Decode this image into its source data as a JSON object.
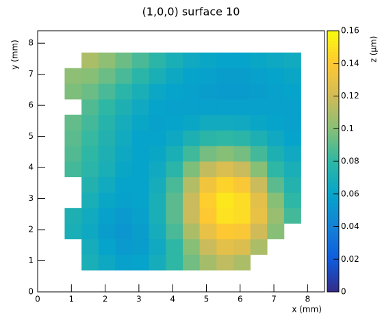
{
  "chart_data": {
    "type": "heatmap",
    "title": "(1,0,0) surface 10",
    "x_label": "x (mm)",
    "y_label": "y (mm)",
    "z_label": "z (µm)",
    "x": [
      1.05,
      1.55,
      2.05,
      2.55,
      3.05,
      3.55,
      4.05,
      4.55,
      5.05,
      5.55,
      6.05,
      6.55,
      7.05,
      7.55
    ],
    "y": [
      0.95,
      1.45,
      1.95,
      2.45,
      2.95,
      3.45,
      3.95,
      4.45,
      4.95,
      5.45,
      5.95,
      6.45,
      6.95,
      7.45
    ],
    "z": [
      [
        null,
        0.07,
        0.064,
        0.058,
        0.06,
        0.068,
        0.08,
        0.095,
        0.108,
        0.115,
        0.11,
        null,
        null,
        null
      ],
      [
        null,
        0.068,
        0.06,
        0.054,
        0.056,
        0.065,
        0.08,
        0.1,
        0.118,
        0.128,
        0.125,
        0.11,
        null,
        null
      ],
      [
        0.07,
        0.064,
        0.056,
        0.052,
        0.056,
        0.068,
        0.086,
        0.11,
        0.13,
        0.14,
        0.138,
        0.12,
        0.1,
        null
      ],
      [
        0.072,
        0.066,
        0.058,
        0.054,
        0.058,
        0.07,
        0.09,
        0.118,
        0.14,
        0.15,
        0.148,
        0.13,
        0.105,
        0.085
      ],
      [
        null,
        0.07,
        0.062,
        0.058,
        0.06,
        0.07,
        0.09,
        0.118,
        0.142,
        0.152,
        0.148,
        0.128,
        0.1,
        0.08
      ],
      [
        null,
        0.074,
        0.066,
        0.06,
        0.06,
        0.068,
        0.086,
        0.112,
        0.134,
        0.144,
        0.138,
        0.118,
        0.09,
        0.075
      ],
      [
        0.085,
        0.078,
        0.07,
        0.062,
        0.06,
        0.065,
        0.078,
        0.098,
        0.116,
        0.124,
        0.118,
        0.1,
        0.08,
        0.07
      ],
      [
        0.088,
        0.08,
        0.072,
        0.064,
        0.06,
        0.062,
        0.07,
        0.084,
        0.096,
        0.1,
        0.096,
        0.085,
        0.072,
        0.065
      ],
      [
        0.09,
        0.082,
        0.074,
        0.066,
        0.06,
        0.06,
        0.064,
        0.072,
        0.078,
        0.08,
        0.078,
        0.072,
        0.065,
        0.06
      ],
      [
        0.092,
        0.085,
        0.076,
        0.068,
        0.062,
        0.058,
        0.06,
        0.062,
        0.066,
        0.066,
        0.065,
        0.062,
        0.06,
        0.058
      ],
      [
        null,
        0.088,
        0.08,
        0.072,
        0.065,
        0.06,
        0.058,
        0.058,
        0.058,
        0.058,
        0.058,
        0.058,
        0.058,
        0.058
      ],
      [
        0.098,
        0.094,
        0.086,
        0.078,
        0.07,
        0.063,
        0.06,
        0.058,
        0.056,
        0.055,
        0.055,
        0.056,
        0.058,
        0.06
      ],
      [
        0.102,
        0.1,
        0.094,
        0.086,
        0.078,
        0.07,
        0.064,
        0.06,
        0.058,
        0.056,
        0.056,
        0.058,
        0.06,
        0.062
      ],
      [
        null,
        0.11,
        0.102,
        0.094,
        0.086,
        0.078,
        0.07,
        0.065,
        0.062,
        0.06,
        0.06,
        0.062,
        0.064,
        0.066
      ]
    ],
    "xlim": [
      0,
      8.5
    ],
    "ylim": [
      0,
      8.4
    ],
    "zlim": [
      0,
      0.16
    ],
    "xticks": [
      0,
      1,
      2,
      3,
      4,
      5,
      6,
      7,
      8
    ],
    "yticks": [
      0,
      1,
      2,
      3,
      4,
      5,
      6,
      7,
      8
    ],
    "zticks": [
      0,
      0.02,
      0.04,
      0.06,
      0.08,
      0.1,
      0.12,
      0.14,
      0.16
    ],
    "palette": [
      "#352a87",
      "#0f5cdd",
      "#1481d6",
      "#06a4ca",
      "#2eb7a4",
      "#87bf77",
      "#d1bb59",
      "#fec832",
      "#f9fb0e"
    ]
  }
}
